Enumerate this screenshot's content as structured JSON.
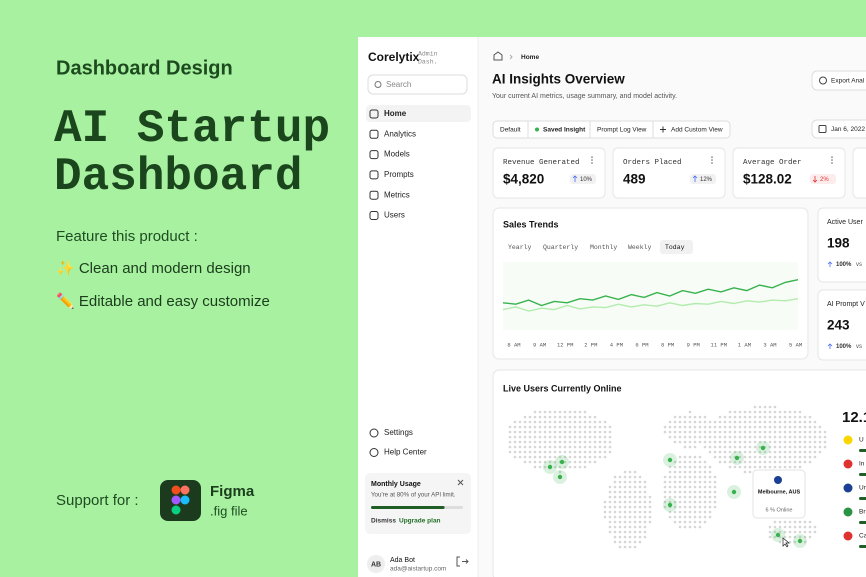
{
  "promo": {
    "subtitle": "Dashboard Design",
    "title_lines": [
      "AI Startup",
      "Dashboard"
    ],
    "features_heading": "Feature this product :",
    "features": [
      "✨ Clean and modern design",
      "✏️ Editable and easy customize"
    ],
    "support_label": "Support for :",
    "tool_name": "Figma",
    "tool_file": ".fig file"
  },
  "sidebar": {
    "brand": "Corelytix",
    "brand_tag": [
      "Admin",
      "Dash."
    ],
    "search_placeholder": "Search",
    "nav": [
      "Home",
      "Analytics",
      "Models",
      "Prompts",
      "Metrics",
      "Users"
    ],
    "footer_nav": [
      "Settings",
      "Help Center"
    ],
    "usage_card": {
      "title": "Monthly Usage",
      "text": "You're at 80% of your API limit.",
      "progress": 80,
      "actions": [
        "Dismiss",
        "Upgrade plan"
      ]
    },
    "user": {
      "initials": "AB",
      "name": "Ada Bot",
      "email": "ada@aistartup.com"
    }
  },
  "header": {
    "breadcrumb": "Home",
    "title": "AI Insights Overview",
    "subtitle": "Your current AI metrics, usage summary, and model activity.",
    "export_button": "Export Anal",
    "views": [
      "Default",
      "Saved Insight",
      "Prompt Log View",
      "Add Custom View"
    ],
    "date": "Jan 6, 2022"
  },
  "stats": [
    {
      "label": "Revenue Generated",
      "value": "$4,820",
      "change": "10%",
      "trend": "up"
    },
    {
      "label": "Orders Placed",
      "value": "489",
      "change": "12%",
      "trend": "up"
    },
    {
      "label": "Average Order",
      "value": "$128.02",
      "change": "2%",
      "trend": "down"
    }
  ],
  "sales_trends": {
    "type": "line",
    "title": "Sales Trends",
    "tabs": [
      "Yearly",
      "Quarterly",
      "Monthly",
      "Weekly",
      "Today"
    ],
    "active_tab": 4,
    "x_labels": [
      "8 AM",
      "9 AM",
      "12 PM",
      "2 PM",
      "4 PM",
      "6 PM",
      "8 PM",
      "9 PM",
      "11 PM",
      "1 AM",
      "3 AM",
      "5 AM"
    ],
    "ylim": [
      0,
      100
    ],
    "series": [
      {
        "color": "#37b24d",
        "values": [
          40,
          38,
          44,
          36,
          42,
          40,
          46,
          44,
          50,
          45,
          52,
          48,
          55,
          50,
          58,
          54,
          60,
          56,
          62,
          58,
          66,
          62,
          70,
          74
        ]
      },
      {
        "color": "#b2ecae",
        "values": [
          30,
          34,
          28,
          32,
          30,
          36,
          31,
          34,
          33,
          38,
          34,
          37,
          35,
          40,
          36,
          39,
          38,
          42,
          39,
          43,
          41,
          44,
          43,
          46
        ]
      }
    ]
  },
  "side_stats": [
    {
      "label": "Active User",
      "value": "198",
      "change": "100%",
      "suffix": "vs"
    },
    {
      "label": "AI Prompt V",
      "value": "243",
      "change": "100%",
      "suffix": "vs"
    }
  ],
  "live_users": {
    "title": "Live Users Currently Online",
    "total": "12.1",
    "countries": [
      "U",
      "In",
      "Ur",
      "Br",
      "Ca"
    ],
    "tooltip": {
      "city": "Melbourne, AUS",
      "text": "6 % Online"
    }
  }
}
